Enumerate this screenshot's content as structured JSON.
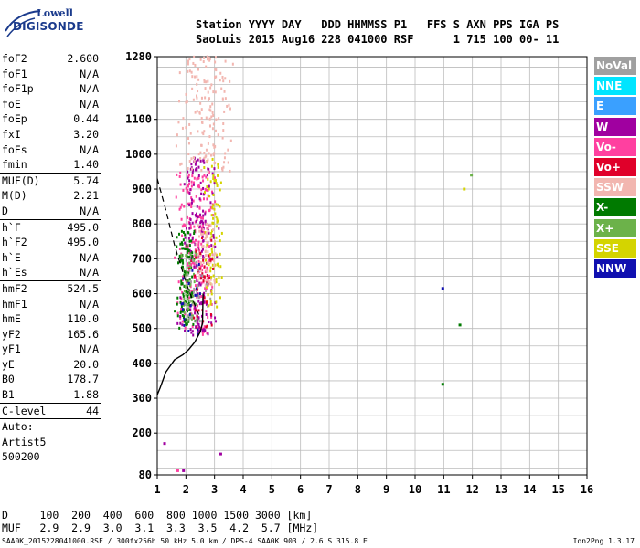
{
  "logo": {
    "line1": "Lowell",
    "line2": "DIGISONDE"
  },
  "header": {
    "line1": "Station YYYY DAY   DDD HHMMSS P1   FFS S AXN PPS IGA PS",
    "line2": "SaoLuis 2015 Aug16 228 041000 RSF      1 715 100 00- 11"
  },
  "params": {
    "g1": [
      {
        "label": "foF2",
        "value": "2.600"
      },
      {
        "label": "foF1",
        "value": "N/A"
      },
      {
        "label": "foF1p",
        "value": "N/A"
      },
      {
        "label": "foE",
        "value": "N/A"
      },
      {
        "label": "foEp",
        "value": "0.44"
      },
      {
        "label": "fxI",
        "value": "3.20"
      },
      {
        "label": "foEs",
        "value": "N/A"
      },
      {
        "label": "fmin",
        "value": "1.40"
      }
    ],
    "g2": [
      {
        "label": "MUF(D)",
        "value": "5.74"
      },
      {
        "label": "M(D)",
        "value": "2.21"
      },
      {
        "label": "D",
        "value": "N/A"
      }
    ],
    "g3": [
      {
        "label": "h`F",
        "value": "495.0"
      },
      {
        "label": "h`F2",
        "value": "495.0"
      },
      {
        "label": "h`E",
        "value": "N/A"
      },
      {
        "label": "h`Es",
        "value": "N/A"
      }
    ],
    "g4": [
      {
        "label": "hmF2",
        "value": "524.5"
      },
      {
        "label": "hmF1",
        "value": "N/A"
      },
      {
        "label": "hmE",
        "value": "110.0"
      },
      {
        "label": "yF2",
        "value": "165.6"
      },
      {
        "label": "yF1",
        "value": "N/A"
      },
      {
        "label": "yE",
        "value": "20.0"
      },
      {
        "label": "B0",
        "value": "178.7"
      },
      {
        "label": "B1",
        "value": "1.88"
      }
    ],
    "g5": [
      {
        "label": "C-level",
        "value": "44"
      }
    ],
    "auto": [
      "Auto:",
      "Artist5",
      "500200"
    ]
  },
  "legend": [
    {
      "label": "NoVal",
      "color": "#a0a0a0"
    },
    {
      "label": "NNE",
      "color": "#00e5ff"
    },
    {
      "label": "E",
      "color": "#3aa0ff"
    },
    {
      "label": "W",
      "color": "#a000a0"
    },
    {
      "label": "Vo-",
      "color": "#ff40a0"
    },
    {
      "label": "Vo+",
      "color": "#e0002a"
    },
    {
      "label": "SSW",
      "color": "#f2b6b0"
    },
    {
      "label": "X-",
      "color": "#007a00"
    },
    {
      "label": "X+",
      "color": "#6cb24a"
    },
    {
      "label": "SSE",
      "color": "#d4d400"
    },
    {
      "label": "NNW",
      "color": "#1010b0"
    }
  ],
  "bottom": {
    "line1": "D     100  200  400  600  800 1000 1500 3000 [km]",
    "line2": "MUF   2.9  2.9  3.0  3.1  3.3  3.5  4.2  5.7 [MHz]"
  },
  "footer": {
    "left": "SAA0K_2015228041000.RSF / 300fx256h 50 kHz 5.0 km / DPS-4 SAA0K 903 / 2.6 S 315.8 E",
    "right": "Ion2Png 1.3.17"
  },
  "chart_data": {
    "type": "scatter",
    "xlim": [
      1,
      16
    ],
    "ylim": [
      80,
      1280
    ],
    "x_ticks": [
      "1",
      "2",
      "3",
      "4",
      "5",
      "6",
      "7",
      "8",
      "9",
      "10",
      "11",
      "12",
      "13",
      "14",
      "15",
      "16"
    ],
    "y_ticks": [
      "80",
      "200",
      "300",
      "400",
      "500",
      "600",
      "700",
      "800",
      "900",
      "1000",
      "1100",
      "1280"
    ],
    "grid": true,
    "profile_curve": {
      "x": [
        1.0,
        1.1,
        1.3,
        1.6,
        1.9,
        2.1,
        2.3,
        2.5,
        2.58,
        2.6
      ],
      "y": [
        310,
        330,
        375,
        410,
        425,
        440,
        460,
        490,
        515,
        600
      ]
    },
    "dashed_curve": {
      "x": [
        1.0,
        1.3,
        1.6,
        1.9,
        2.1,
        2.3,
        2.45
      ],
      "y": [
        930,
        840,
        740,
        660,
        610,
        570,
        540
      ]
    },
    "echo_clusters": [
      {
        "color": "#ff40a0",
        "x": [
          1.6,
          3.1
        ],
        "y": [
          480,
          950
        ],
        "n": 240
      },
      {
        "color": "#a000a0",
        "x": [
          1.7,
          3.2
        ],
        "y": [
          480,
          1000
        ],
        "n": 180
      },
      {
        "color": "#007a00",
        "x": [
          1.6,
          2.4
        ],
        "y": [
          500,
          780
        ],
        "n": 110
      },
      {
        "color": "#d4d400",
        "x": [
          2.6,
          3.3
        ],
        "y": [
          560,
          1000
        ],
        "n": 90
      },
      {
        "color": "#f2b6b0",
        "x": [
          1.6,
          3.8
        ],
        "y": [
          950,
          1280
        ],
        "n": 160
      },
      {
        "color": "#f2b6b0",
        "x": [
          2.2,
          3.1
        ],
        "y": [
          620,
          800
        ],
        "n": 70
      },
      {
        "color": "#6cb24a",
        "x": [
          1.7,
          2.5
        ],
        "y": [
          520,
          720
        ],
        "n": 50
      },
      {
        "color": "#e0002a",
        "x": [
          2.0,
          3.0
        ],
        "y": [
          500,
          760
        ],
        "n": 40
      },
      {
        "color": "#a0a0a0",
        "x": [
          1.7,
          3.0
        ],
        "y": [
          520,
          700
        ],
        "n": 30
      },
      {
        "color": "#1010b0",
        "x": [
          1.6,
          2.8
        ],
        "y": [
          480,
          700
        ],
        "n": 20
      }
    ],
    "isolated_points": [
      {
        "x": 1.24,
        "y": 170,
        "color": "#a000a0"
      },
      {
        "x": 1.7,
        "y": 92,
        "color": "#ff40a0"
      },
      {
        "x": 1.9,
        "y": 92,
        "color": "#a000a0"
      },
      {
        "x": 3.2,
        "y": 140,
        "color": "#a000a0"
      },
      {
        "x": 10.95,
        "y": 615,
        "color": "#1010b0"
      },
      {
        "x": 11.55,
        "y": 510,
        "color": "#007a00"
      },
      {
        "x": 10.95,
        "y": 340,
        "color": "#007a00"
      },
      {
        "x": 11.95,
        "y": 940,
        "color": "#6cb24a"
      },
      {
        "x": 11.7,
        "y": 900,
        "color": "#d4d400"
      }
    ]
  }
}
